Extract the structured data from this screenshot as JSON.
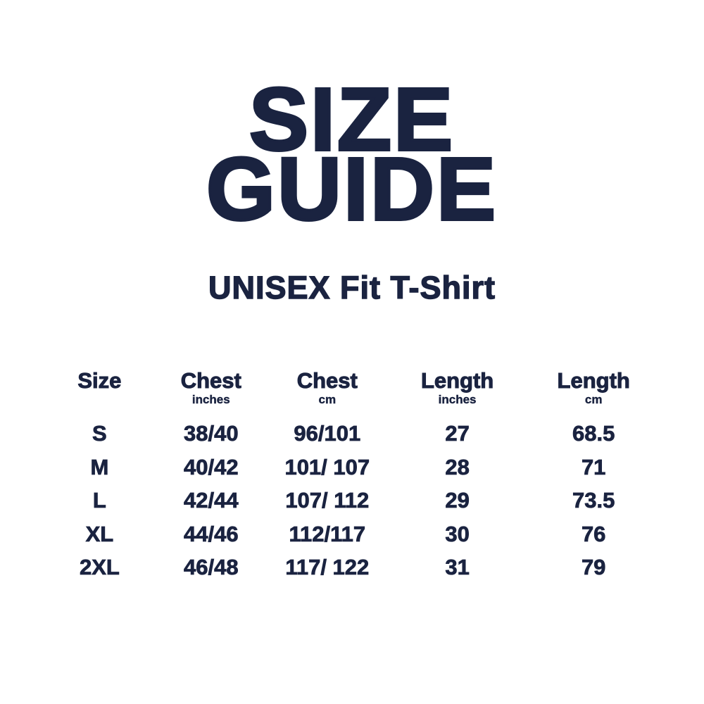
{
  "page": {
    "title_line1": "SIZE",
    "title_line2": "GUIDE",
    "subtitle": "UNISEX Fit T-Shirt"
  },
  "colors": {
    "text": "#1a2340",
    "background": "#ffffff"
  },
  "table": {
    "columns": [
      {
        "label": "Size",
        "unit": ""
      },
      {
        "label": "Chest",
        "unit": "inches"
      },
      {
        "label": "Chest",
        "unit": "cm"
      },
      {
        "label": "Length",
        "unit": "inches"
      },
      {
        "label": "Length",
        "unit": "cm"
      }
    ],
    "rows": [
      {
        "size": "S",
        "chest_in": "38/40",
        "chest_cm": "96/101",
        "length_in": "27",
        "length_cm": "68.5"
      },
      {
        "size": "M",
        "chest_in": "40/42",
        "chest_cm": "101/ 107",
        "length_in": "28",
        "length_cm": "71"
      },
      {
        "size": "L",
        "chest_in": "42/44",
        "chest_cm": "107/ 112",
        "length_in": "29",
        "length_cm": "73.5"
      },
      {
        "size": "XL",
        "chest_in": "44/46",
        "chest_cm": "112/117",
        "length_in": "30",
        "length_cm": "76"
      },
      {
        "size": "2XL",
        "chest_in": "46/48",
        "chest_cm": "117/ 122",
        "length_in": "31",
        "length_cm": "79"
      }
    ]
  }
}
